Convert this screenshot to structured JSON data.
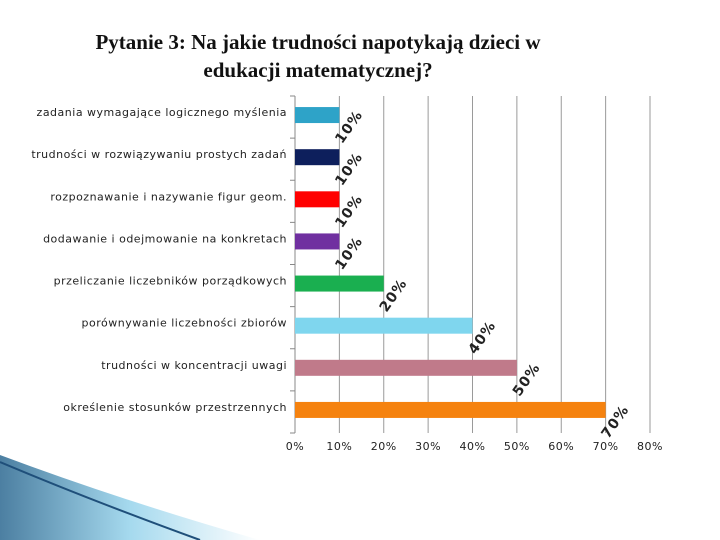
{
  "chart_data": {
    "type": "bar",
    "orientation": "horizontal",
    "title": "Pytanie 3: Na jakie trudności napotykają dzieci w edukacji matematycznej?",
    "categories": [
      "zadania wymagające logicznego myślenia",
      "trudności w rozwiązywaniu prostych zadań",
      "rozpoznawanie i nazywanie figur geom.",
      "dodawanie i odejmowanie na konkretach",
      "przeliczanie liczebników porządkowych",
      "porównywanie liczebności zbiorów",
      "trudności w koncentracji uwagi",
      "określenie stosunków przestrzennych"
    ],
    "values": [
      10,
      10,
      10,
      10,
      20,
      40,
      50,
      70
    ],
    "value_labels": [
      "10%",
      "10%",
      "10%",
      "10%",
      "20%",
      "40%",
      "50%",
      "70%"
    ],
    "colors": [
      "#2ea3c8",
      "#0d1f5c",
      "#ff0000",
      "#7030a0",
      "#1aaf50",
      "#7fd6ee",
      "#c07a8a",
      "#f5820f"
    ],
    "xlim": [
      0,
      80
    ],
    "xticks": [
      {
        "value": 0,
        "label": "0%"
      },
      {
        "value": 10,
        "label": "10%"
      },
      {
        "value": 20,
        "label": "20%"
      },
      {
        "value": 30,
        "label": "30%"
      },
      {
        "value": 40,
        "label": "40%"
      },
      {
        "value": 50,
        "label": "50%"
      },
      {
        "value": 60,
        "label": "60%"
      },
      {
        "value": 70,
        "label": "70%"
      },
      {
        "value": 80,
        "label": "80%"
      }
    ],
    "grid": true
  }
}
